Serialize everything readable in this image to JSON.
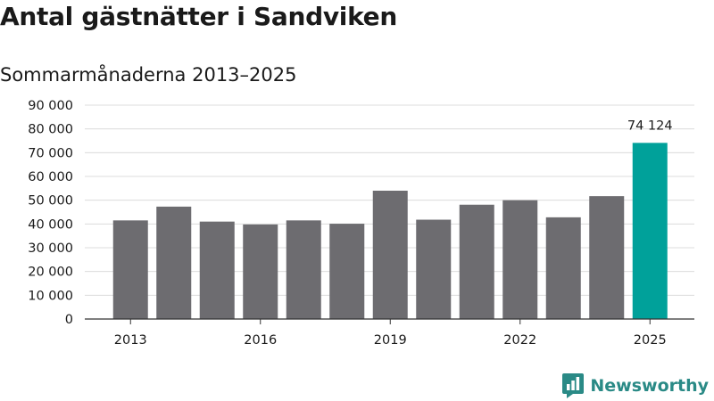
{
  "chart_data": {
    "type": "bar",
    "title": "Antal gästnätter i Sandviken",
    "subtitle": "Sommarmånaderna 2013–2025",
    "categories": [
      "2013",
      "2014",
      "2015",
      "2016",
      "2017",
      "2018",
      "2019",
      "2020",
      "2021",
      "2022",
      "2023",
      "2024",
      "2025"
    ],
    "values": [
      41500,
      47300,
      41000,
      39800,
      41500,
      40100,
      54000,
      41800,
      48100,
      50000,
      42800,
      51700,
      74124
    ],
    "highlight_index": 12,
    "highlight_label": "74 124",
    "x_tick_labels": [
      "2013",
      "2016",
      "2019",
      "2022",
      "2025"
    ],
    "y_tick_labels": [
      "0",
      "10 000",
      "20 000",
      "30 000",
      "40 000",
      "50 000",
      "60 000",
      "70 000",
      "80 000",
      "90 000"
    ],
    "ylim": [
      0,
      90000
    ],
    "ystep": 10000,
    "grid": true,
    "colors": {
      "bar": "#6d6c70",
      "highlight": "#00a19a",
      "grid": "#dcdcdc",
      "axis": "#333333"
    }
  },
  "brand": {
    "name": "Newsworthy",
    "color": "#2a8a86",
    "icon": "bar-chart-icon"
  }
}
